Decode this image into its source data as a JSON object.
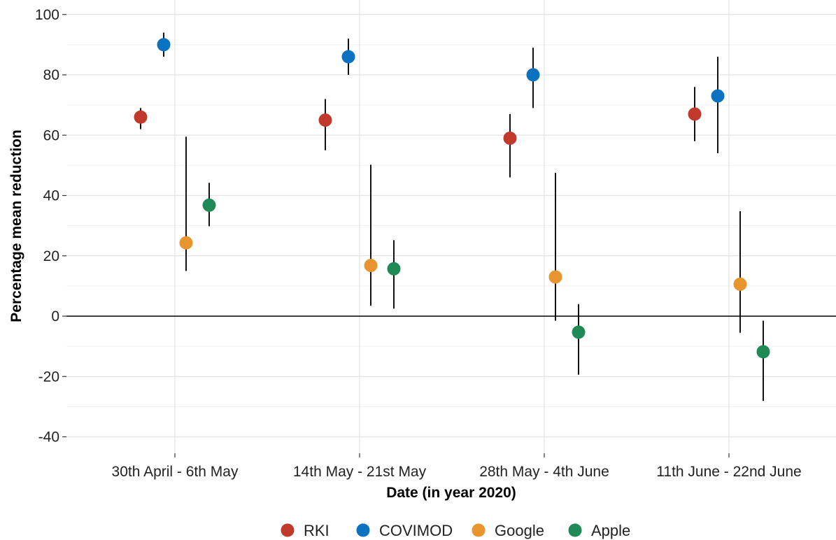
{
  "chart_data": {
    "type": "scatter",
    "title": "",
    "xlabel": "Date (in year 2020)",
    "ylabel": "Percentage mean reduction",
    "ylim": [
      -45,
      100
    ],
    "yticks": [
      -40,
      -20,
      0,
      20,
      40,
      60,
      80,
      100
    ],
    "grid": true,
    "legend_position": "bottom",
    "reference_line_y": 0,
    "categories": [
      "30th April - 6th May",
      "14th May - 21st May",
      "28th May - 4th June",
      "11th June - 22nd June"
    ],
    "series": [
      {
        "name": "RKI",
        "color": "#c0392b",
        "values": [
          66,
          65,
          59,
          67
        ],
        "lower": [
          62,
          55,
          46,
          58
        ],
        "upper": [
          69,
          72,
          67,
          76
        ]
      },
      {
        "name": "COVIMOD",
        "color": "#0a72c1",
        "values": [
          90,
          86,
          80,
          73
        ],
        "lower": [
          86,
          80,
          69,
          54
        ],
        "upper": [
          94,
          92,
          89,
          86
        ]
      },
      {
        "name": "Google",
        "color": "#e8952f",
        "values": [
          24.3,
          16.8,
          13,
          10.6
        ],
        "lower": [
          15,
          3.5,
          -1.5,
          -5.5
        ],
        "upper": [
          59.5,
          50.2,
          47.5,
          34.8
        ]
      },
      {
        "name": "Apple",
        "color": "#1f8a55",
        "values": [
          36.8,
          15.7,
          -5.3,
          -11.8
        ],
        "lower": [
          29.8,
          2.5,
          -19.4,
          -28.1
        ],
        "upper": [
          44.2,
          25.2,
          4,
          -1.5
        ]
      }
    ]
  }
}
